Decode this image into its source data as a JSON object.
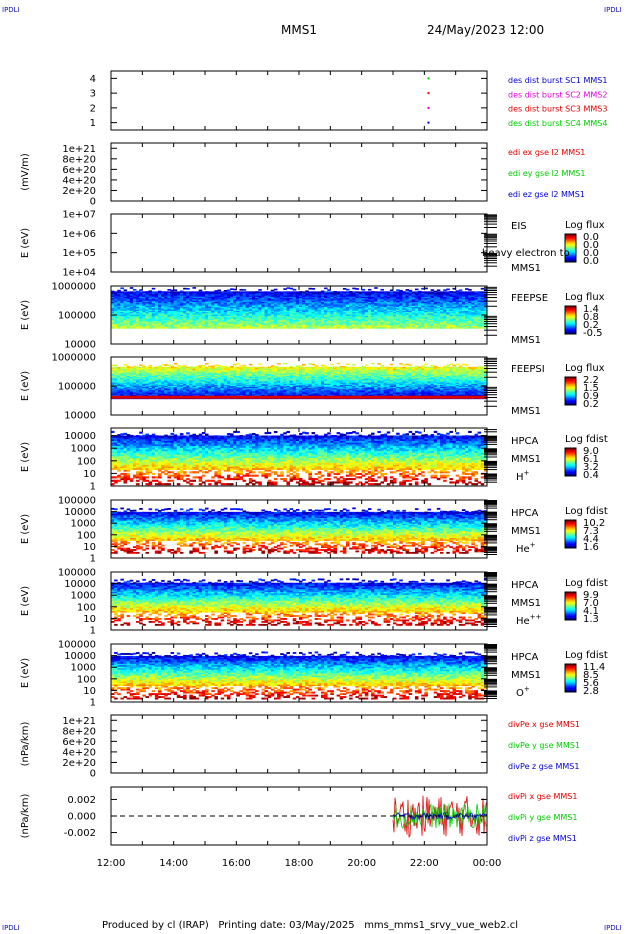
{
  "corners": {
    "top_left": "IPDLI",
    "top_right": "IPDLI",
    "bottom_left": "IPDLI",
    "bottom_right": "IPDLI"
  },
  "header": {
    "title": "MMS1",
    "datetime": "24/May/2023 12:00"
  },
  "footer": {
    "text": "Produced by cl (IRAP)   Printing date: 03/May/2025   mms_mms1_srvy_vue_web2.cl"
  },
  "colors": {
    "red": "#e00000",
    "green": "#00cc00",
    "blue": "#0000cc",
    "magenta": "#dd00dd",
    "axis": "#000000"
  },
  "chart_data": [
    {
      "id": "burst",
      "type": "scatter",
      "ylabel": "",
      "ylim": [
        0.5,
        4.5
      ],
      "ytick_labels": [
        "1",
        "2",
        "3",
        "4"
      ],
      "xlim": [
        "12:00",
        "00:00"
      ],
      "legend": [
        {
          "text": "des dist burst SC1 MMS1",
          "color": "#0000cc"
        },
        {
          "text": "des dist burst SC2 MMS2",
          "color": "#dd00dd"
        },
        {
          "text": "des dist burst SC3 MMS3",
          "color": "#e00000"
        },
        {
          "text": "des dist burst SC4 MMS4",
          "color": "#00cc00"
        }
      ],
      "points": [
        {
          "x": "22:08",
          "y": 1,
          "color": "#0000cc"
        },
        {
          "x": "22:08",
          "y": 2,
          "color": "#dd00dd"
        },
        {
          "x": "22:08",
          "y": 3,
          "color": "#e00000"
        },
        {
          "x": "22:08",
          "y": 4,
          "color": "#00cc00"
        }
      ]
    },
    {
      "id": "edi",
      "type": "line",
      "ylabel": "(mV/m)",
      "ylim": [
        0,
        1.1e+21
      ],
      "ytick_labels": [
        "0",
        "2e+20",
        "4e+20",
        "6e+20",
        "8e+20",
        "1e+21"
      ],
      "zero_line": true,
      "legend": [
        {
          "text": "edi ex gse l2 MMS1",
          "color": "#e00000"
        },
        {
          "text": "edi ey gse l2 MMS1",
          "color": "#00cc00"
        },
        {
          "text": "edi ez gse l2 MMS1",
          "color": "#0000cc"
        }
      ]
    },
    {
      "id": "eis",
      "type": "heatmap",
      "ylabel": "E (eV)",
      "yscale": "log",
      "ylim": [
        10000.0,
        10000000.0
      ],
      "ytick_labels": [
        "1e+04",
        "1e+05",
        "1e+06",
        "1e+07"
      ],
      "instrument": [
        "EIS",
        "MMS1"
      ],
      "overlay_text": "heavy electron to",
      "colorbar": {
        "title": "Log flux",
        "ticks": [
          "0.0",
          "0.0",
          "0.0",
          "0.0"
        ]
      },
      "empty": true
    },
    {
      "id": "feepse",
      "type": "heatmap",
      "ylabel": "E (eV)",
      "yscale": "log",
      "ylim": [
        10000,
        1000000
      ],
      "ytick_labels": [
        "10000",
        "100000",
        "1000000"
      ],
      "instrument": [
        "FEEPSE",
        "MMS1"
      ],
      "colorbar": {
        "title": "Log flux",
        "ticks": [
          "1.4",
          "0.8",
          "0.2",
          "-0.5"
        ]
      },
      "band": {
        "low": 0.27,
        "high": 0.93
      }
    },
    {
      "id": "feepsi",
      "type": "heatmap",
      "ylabel": "E (eV)",
      "yscale": "log",
      "ylim": [
        10000,
        1000000
      ],
      "ytick_labels": [
        "10000",
        "100000",
        "1000000"
      ],
      "instrument": [
        "FEEPSI",
        "MMS1"
      ],
      "colorbar": {
        "title": "Log flux",
        "ticks": [
          "2.2",
          "1.5",
          "0.9",
          "0.2"
        ]
      },
      "band": {
        "low": 0.28,
        "high": 0.85
      }
    },
    {
      "id": "hpca_h",
      "type": "heatmap",
      "ylabel": "E (eV)",
      "yscale": "log",
      "ylim": [
        1,
        40000
      ],
      "ytick_labels": [
        "1",
        "10",
        "100",
        "1000",
        "10000"
      ],
      "instrument": [
        "HPCA",
        "MMS1",
        "H+"
      ],
      "colorbar": {
        "title": "Log fdist",
        "ticks": [
          "9.0",
          "6.1",
          "3.2",
          "0.4"
        ]
      },
      "band": {
        "low": 0.02,
        "high": 0.9
      }
    },
    {
      "id": "hpca_he",
      "type": "heatmap",
      "ylabel": "E (eV)",
      "yscale": "log",
      "ylim": [
        1,
        100000
      ],
      "ytick_labels": [
        "1",
        "10",
        "100",
        "1000",
        "10000",
        "100000"
      ],
      "instrument": [
        "HPCA",
        "MMS1",
        "He+"
      ],
      "colorbar": {
        "title": "Log fdist",
        "ticks": [
          "10.2",
          "7.3",
          "4.4",
          "1.6"
        ]
      },
      "band": {
        "low": 0.08,
        "high": 0.82
      }
    },
    {
      "id": "hpca_hepp",
      "type": "heatmap",
      "ylabel": "E (eV)",
      "yscale": "log",
      "ylim": [
        1,
        100000
      ],
      "ytick_labels": [
        "1",
        "10",
        "100",
        "1000",
        "10000",
        "100000"
      ],
      "instrument": [
        "HPCA",
        "MMS1",
        "He++"
      ],
      "colorbar": {
        "title": "Log fdist",
        "ticks": [
          "9.9",
          "7.0",
          "4.1",
          "1.3"
        ]
      },
      "band": {
        "low": 0.08,
        "high": 0.84
      }
    },
    {
      "id": "hpca_o",
      "type": "heatmap",
      "ylabel": "E (eV)",
      "yscale": "log",
      "ylim": [
        1,
        100000
      ],
      "ytick_labels": [
        "1",
        "10",
        "100",
        "1000",
        "10000",
        "100000"
      ],
      "instrument": [
        "HPCA",
        "MMS1",
        "O+"
      ],
      "colorbar": {
        "title": "Log fdist",
        "ticks": [
          "11.4",
          "8.5",
          "5.6",
          "2.8"
        ]
      },
      "band": {
        "low": 0.05,
        "high": 0.82
      }
    },
    {
      "id": "divpe",
      "type": "line",
      "ylabel": "(nPa/km)",
      "ylim": [
        0,
        1.1e+21
      ],
      "ytick_labels": [
        "0",
        "2e+20",
        "4e+20",
        "6e+20",
        "8e+20",
        "1e+21"
      ],
      "zero_line": true,
      "legend": [
        {
          "text": "divPe x gse MMS1",
          "color": "#e00000"
        },
        {
          "text": "divPe y gse MMS1",
          "color": "#00cc00"
        },
        {
          "text": "divPe z gse MMS1",
          "color": "#0000cc"
        }
      ]
    },
    {
      "id": "divpi",
      "type": "line",
      "ylabel": "(nPa/km)",
      "ylim": [
        -0.0035,
        0.0035
      ],
      "ytick_labels": [
        "-0.002",
        "0.000",
        "0.002"
      ],
      "zero_line": true,
      "legend": [
        {
          "text": "divPi x gse MMS1",
          "color": "#e00000"
        },
        {
          "text": "divPi y gse MMS1",
          "color": "#00cc00"
        },
        {
          "text": "divPi z gse MMS1",
          "color": "#0000cc"
        }
      ],
      "data_start": "21:00",
      "amplitude": {
        "x": 0.0025,
        "y": 0.0015,
        "z": 0.0004
      }
    }
  ],
  "x_axis": {
    "tick_labels": [
      "12:00",
      "14:00",
      "16:00",
      "18:00",
      "20:00",
      "22:00",
      "00:00"
    ]
  }
}
